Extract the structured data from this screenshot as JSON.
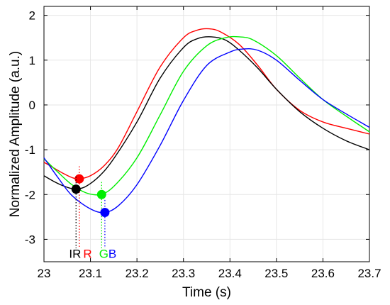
{
  "chart_data": {
    "type": "line",
    "title": "",
    "xlabel": "Time (s)",
    "ylabel": "Normalized Amplitude (a.u.)",
    "xlim": [
      23,
      23.7
    ],
    "ylim": [
      -3.5,
      2.2
    ],
    "xticks": [
      23,
      23.1,
      23.2,
      23.3,
      23.4,
      23.5,
      23.6,
      23.7
    ],
    "xtick_labels": [
      "23",
      "23.1",
      "23.2",
      "23.3",
      "23.4",
      "23.5",
      "23.6",
      "23.7"
    ],
    "yticks": [
      2,
      1,
      0,
      -1,
      -2,
      -3
    ],
    "ytick_labels": [
      "2",
      "1",
      "0",
      "-1",
      "-2",
      "-3"
    ],
    "grid": true,
    "legend": "none",
    "series": [
      {
        "name": "R",
        "color": "#ff0000",
        "x": [
          23.0,
          23.02,
          23.04,
          23.06,
          23.075,
          23.1,
          23.13,
          23.16,
          23.2,
          23.25,
          23.3,
          23.33,
          23.355,
          23.38,
          23.42,
          23.46,
          23.5,
          23.55,
          23.6,
          23.65,
          23.7
        ],
        "values": [
          -1.28,
          -1.4,
          -1.52,
          -1.62,
          -1.65,
          -1.58,
          -1.35,
          -0.95,
          -0.15,
          0.85,
          1.5,
          1.67,
          1.7,
          1.63,
          1.35,
          0.88,
          0.35,
          -0.12,
          -0.38,
          -0.52,
          -0.65
        ]
      },
      {
        "name": "IR",
        "color": "#000000",
        "x": [
          23.0,
          23.02,
          23.04,
          23.06,
          23.07,
          23.09,
          23.12,
          23.15,
          23.2,
          23.25,
          23.3,
          23.33,
          23.36,
          23.39,
          23.42,
          23.46,
          23.5,
          23.55,
          23.6,
          23.65,
          23.7
        ],
        "values": [
          -1.58,
          -1.7,
          -1.8,
          -1.87,
          -1.88,
          -1.82,
          -1.58,
          -1.2,
          -0.38,
          0.6,
          1.28,
          1.48,
          1.52,
          1.45,
          1.22,
          0.82,
          0.35,
          -0.15,
          -0.52,
          -0.8,
          -1.0
        ]
      },
      {
        "name": "G",
        "color": "#00ee00",
        "x": [
          23.0,
          23.03,
          23.06,
          23.09,
          23.12,
          23.15,
          23.2,
          23.25,
          23.3,
          23.35,
          23.39,
          23.42,
          23.45,
          23.5,
          23.55,
          23.6,
          23.65,
          23.7
        ],
        "values": [
          -1.2,
          -1.5,
          -1.78,
          -1.96,
          -2.0,
          -1.82,
          -1.18,
          -0.22,
          0.75,
          1.32,
          1.5,
          1.52,
          1.45,
          1.1,
          0.6,
          0.12,
          -0.25,
          -0.6
        ]
      },
      {
        "name": "B",
        "color": "#0000ff",
        "x": [
          23.0,
          23.03,
          23.06,
          23.1,
          23.13,
          23.16,
          23.2,
          23.25,
          23.3,
          23.35,
          23.4,
          23.43,
          23.46,
          23.5,
          23.55,
          23.6,
          23.65,
          23.7
        ],
        "values": [
          -1.18,
          -1.62,
          -2.02,
          -2.32,
          -2.4,
          -2.25,
          -1.78,
          -0.9,
          0.1,
          0.88,
          1.18,
          1.25,
          1.22,
          1.0,
          0.55,
          0.12,
          -0.2,
          -0.5
        ]
      }
    ],
    "markers": [
      {
        "name": "R",
        "color": "#ff0000",
        "x": 23.076,
        "y": -1.65,
        "label_y": -3.32
      },
      {
        "name": "IR",
        "color": "#000000",
        "x": 23.069,
        "y": -1.88,
        "label_y": -3.32
      },
      {
        "name": "G",
        "color": "#00ee00",
        "x": 23.124,
        "y": -2.0,
        "label_y": -3.32
      },
      {
        "name": "B",
        "color": "#0000ff",
        "x": 23.131,
        "y": -2.4,
        "label_y": -3.32
      }
    ],
    "annotations": {
      "labels": [
        {
          "text": "IR",
          "color": "#000000"
        },
        {
          "text": "R",
          "color": "#ff0000"
        },
        {
          "text": "G",
          "color": "#00ee00"
        },
        {
          "text": "B",
          "color": "#0000ff"
        }
      ]
    }
  }
}
